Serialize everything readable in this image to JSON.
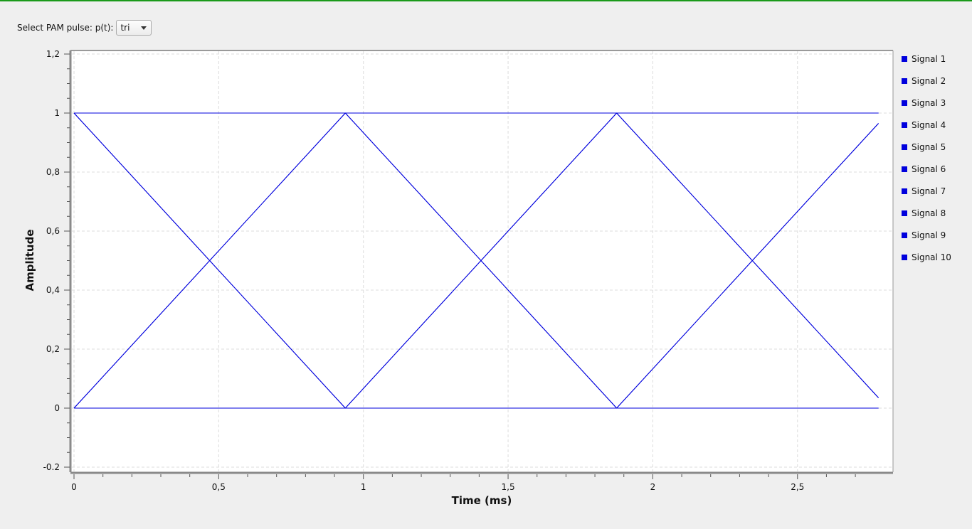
{
  "control": {
    "label": "Select PAM pulse: p(t):",
    "selected": "tri"
  },
  "colors": {
    "signal": "#0000dd",
    "grid": "#dddddd",
    "top_border": "#1a9a1a"
  },
  "chart_data": {
    "type": "line",
    "xlabel": "Time (ms)",
    "ylabel": "Amplitude",
    "xlim": [
      -0.02,
      2.8
    ],
    "ylim": [
      -0.2,
      1.2
    ],
    "x_ticks": [
      {
        "value": 0,
        "label": "0"
      },
      {
        "value": 0.5,
        "label": "0,5"
      },
      {
        "value": 1,
        "label": "1"
      },
      {
        "value": 1.5,
        "label": "1,5"
      },
      {
        "value": 2,
        "label": "2"
      },
      {
        "value": 2.5,
        "label": "2,5"
      }
    ],
    "y_ticks": [
      {
        "value": -0.2,
        "label": "-0.2"
      },
      {
        "value": 0,
        "label": "0"
      },
      {
        "value": 0.2,
        "label": "0,2"
      },
      {
        "value": 0.4,
        "label": "0,4"
      },
      {
        "value": 0.6,
        "label": "0,6"
      },
      {
        "value": 0.8,
        "label": "0,8"
      },
      {
        "value": 1,
        "label": "1"
      },
      {
        "value": 1.2,
        "label": "1,2"
      }
    ],
    "grid": true,
    "legend_position": "right",
    "series": [
      {
        "name": "Signal 1",
        "x": [
          0,
          0.9375,
          1.875,
          2.78
        ],
        "y": [
          0,
          1,
          0,
          0.965
        ]
      },
      {
        "name": "Signal 2",
        "x": [
          0,
          0.9375,
          1.875,
          2.78
        ],
        "y": [
          1,
          0,
          1,
          0.035
        ]
      },
      {
        "name": "Signal 3",
        "x": [
          0,
          2.78
        ],
        "y": [
          1,
          1
        ]
      },
      {
        "name": "Signal 4",
        "x": [
          0,
          2.78
        ],
        "y": [
          0,
          0
        ]
      },
      {
        "name": "Signal 5",
        "x": [
          0,
          0.9375,
          2.78
        ],
        "y": [
          0,
          1,
          1
        ]
      },
      {
        "name": "Signal 6",
        "x": [
          0,
          0.9375,
          2.78
        ],
        "y": [
          1,
          0,
          0
        ]
      },
      {
        "name": "Signal 7",
        "x": [
          0,
          1.875,
          2.78
        ],
        "y": [
          1,
          1,
          0.035
        ]
      },
      {
        "name": "Signal 8",
        "x": [
          0,
          1.875,
          2.78
        ],
        "y": [
          0,
          0,
          0.965
        ]
      },
      {
        "name": "Signal 9",
        "x": [
          0,
          0.9375,
          1.875,
          2.78
        ],
        "y": [
          0,
          0,
          1,
          1
        ]
      },
      {
        "name": "Signal 10",
        "x": [
          0,
          0.9375,
          1.875,
          2.78
        ],
        "y": [
          1,
          1,
          0,
          0
        ]
      }
    ]
  }
}
